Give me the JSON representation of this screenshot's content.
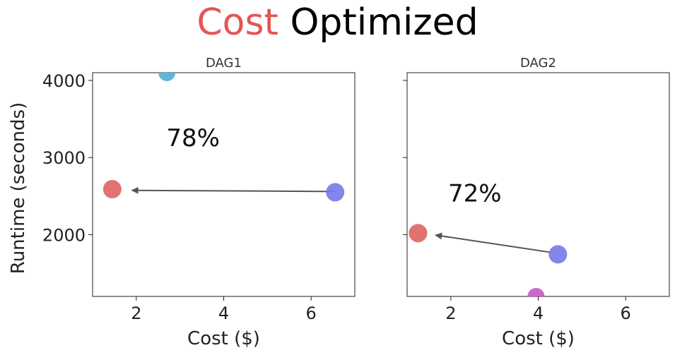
{
  "title": {
    "accent": "Cost",
    "rest": "Optimized",
    "accent_color": "#e45555"
  },
  "chart_data": [
    {
      "type": "scatter",
      "title": "DAG1",
      "xlabel": "Cost ($)",
      "ylabel": "Runtime (seconds)",
      "xlim": [
        1,
        7
      ],
      "ylim": [
        1200,
        4100
      ],
      "xticks": [
        2,
        4,
        6
      ],
      "yticks": [
        2000,
        3000,
        4000
      ],
      "grid": false,
      "points": [
        {
          "x": 1.45,
          "y": 2590,
          "color": "#e06666"
        },
        {
          "x": 6.55,
          "y": 2550,
          "color": "#7b7be8"
        }
      ],
      "partial_points": [
        {
          "x": 2.7,
          "y": 4100,
          "color": "#5fb8d9"
        }
      ],
      "arrow": {
        "from": [
          6.55,
          2560
        ],
        "to": [
          1.9,
          2575
        ],
        "color": "#555555"
      },
      "annotation": {
        "text": "78%",
        "x": 3.3,
        "y": 3150
      }
    },
    {
      "type": "scatter",
      "title": "DAG2",
      "xlabel": "Cost ($)",
      "ylabel": "",
      "xlim": [
        1,
        7
      ],
      "ylim": [
        1200,
        4100
      ],
      "xticks": [
        2,
        4,
        6
      ],
      "yticks": [
        2000,
        3000,
        4000
      ],
      "show_ytick_labels": false,
      "grid": false,
      "points": [
        {
          "x": 1.25,
          "y": 2020,
          "color": "#e06666"
        },
        {
          "x": 4.45,
          "y": 1745,
          "color": "#7b7be8"
        }
      ],
      "partial_points": [
        {
          "x": 3.95,
          "y": 1200,
          "color": "#cc66cc"
        }
      ],
      "arrow": {
        "from": [
          4.3,
          1770
        ],
        "to": [
          1.65,
          1995
        ],
        "color": "#555555"
      },
      "annotation": {
        "text": "72%",
        "x": 2.55,
        "y": 2430
      }
    }
  ]
}
